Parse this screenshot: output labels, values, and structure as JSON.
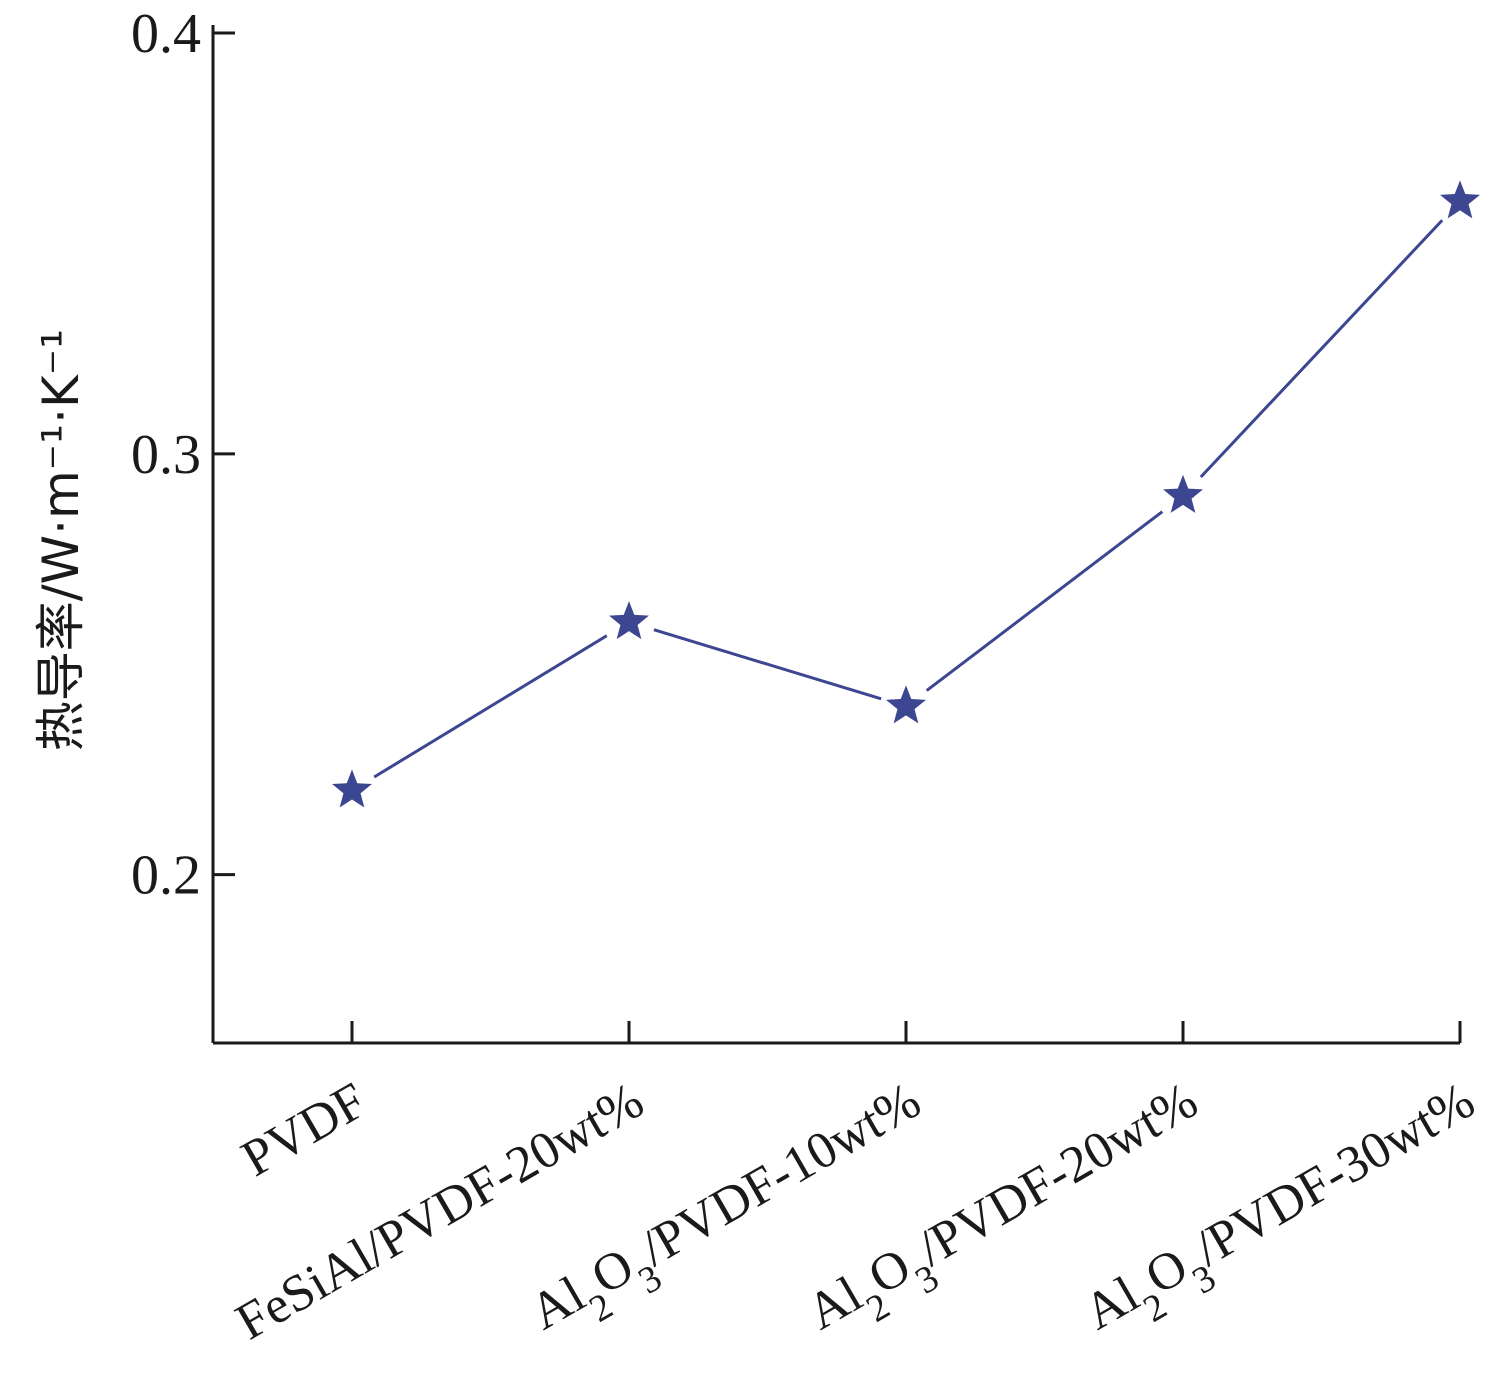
{
  "chart_data": {
    "type": "line",
    "categories": [
      "PVDF",
      "FeSiAl/PVDF-20wt%",
      "Al2O3/PVDF-10wt%",
      "Al2O3/PVDF-20wt%",
      "Al2O3/PVDF-30wt%"
    ],
    "series": [
      {
        "values": [
          0.22,
          0.26,
          0.24,
          0.29,
          0.36
        ]
      }
    ],
    "ylabel": "热导率/W·m⁻¹·K⁻¹",
    "ylim": [
      0.16,
      0.4
    ],
    "yticks": [
      "0.2",
      "0.3",
      "0.4"
    ],
    "xlabel": "",
    "title": "",
    "grid": false,
    "marker": "star",
    "color": "#3d4690"
  }
}
